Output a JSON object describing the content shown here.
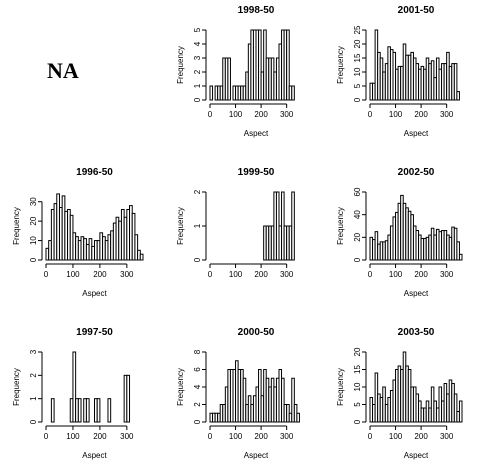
{
  "na_label": "NA",
  "chart_data": [
    {
      "type": "bar",
      "title": "1998-50",
      "xlabel": "Aspect",
      "ylabel": "Frequency",
      "bin_width": 10,
      "xlim": [
        0,
        360
      ],
      "xticks": [
        0,
        100,
        200,
        300
      ],
      "ylim": [
        0,
        5
      ],
      "yticks": [
        0,
        1,
        2,
        3,
        4,
        5
      ],
      "categories": [
        "0-10",
        "10-20",
        "20-30",
        "30-40",
        "40-50",
        "50-60",
        "60-70",
        "70-80",
        "80-90",
        "90-100",
        "100-110",
        "110-120",
        "120-130",
        "130-140",
        "140-150",
        "150-160",
        "160-170",
        "170-180",
        "180-190",
        "190-200",
        "200-210",
        "210-220",
        "220-230",
        "230-240",
        "240-250",
        "250-260",
        "260-270",
        "270-280",
        "280-290",
        "290-300",
        "300-310",
        "310-320",
        "320-330",
        "330-340",
        "340-350",
        "350-360"
      ],
      "values": [
        1,
        0,
        1,
        1,
        1,
        3,
        3,
        3,
        0,
        1,
        1,
        1,
        1,
        1,
        2,
        4,
        5,
        5,
        5,
        5,
        2,
        5,
        3,
        3,
        3,
        2,
        3,
        4,
        5,
        5,
        5,
        1,
        1,
        0,
        0,
        0
      ]
    },
    {
      "type": "bar",
      "title": "2001-50",
      "xlabel": "Aspect",
      "ylabel": "Frequency",
      "bin_width": 10,
      "xlim": [
        0,
        360
      ],
      "xticks": [
        0,
        100,
        200,
        300
      ],
      "ylim": [
        0,
        25
      ],
      "yticks": [
        0,
        5,
        10,
        15,
        20,
        25
      ],
      "categories": [
        "0-10",
        "10-20",
        "20-30",
        "30-40",
        "40-50",
        "50-60",
        "60-70",
        "70-80",
        "80-90",
        "90-100",
        "100-110",
        "110-120",
        "120-130",
        "130-140",
        "140-150",
        "150-160",
        "160-170",
        "170-180",
        "180-190",
        "190-200",
        "200-210",
        "210-220",
        "220-230",
        "230-240",
        "240-250",
        "250-260",
        "260-270",
        "270-280",
        "280-290",
        "290-300",
        "300-310",
        "310-320",
        "320-330",
        "330-340",
        "340-350",
        "350-360"
      ],
      "values": [
        6,
        6,
        25,
        17,
        15,
        10,
        13,
        19,
        18,
        17,
        11,
        12,
        12,
        20,
        16,
        16,
        17,
        15,
        13,
        11,
        12,
        11,
        15,
        13,
        14,
        8,
        15,
        11,
        13,
        13,
        17,
        12,
        13,
        13,
        3,
        0
      ]
    },
    {
      "type": "bar",
      "title": "1996-50",
      "xlabel": "Aspect",
      "ylabel": "Frequency",
      "bin_width": 10,
      "xlim": [
        0,
        360
      ],
      "xticks": [
        0,
        100,
        200,
        300
      ],
      "ylim": [
        0,
        35
      ],
      "yticks": [
        0,
        10,
        20,
        30
      ],
      "categories": [
        "0-10",
        "10-20",
        "20-30",
        "30-40",
        "40-50",
        "50-60",
        "60-70",
        "70-80",
        "80-90",
        "90-100",
        "100-110",
        "110-120",
        "120-130",
        "130-140",
        "140-150",
        "150-160",
        "160-170",
        "170-180",
        "180-190",
        "190-200",
        "200-210",
        "210-220",
        "220-230",
        "230-240",
        "240-250",
        "250-260",
        "260-270",
        "270-280",
        "280-290",
        "290-300",
        "300-310",
        "310-320",
        "320-330",
        "330-340",
        "340-350",
        "350-360"
      ],
      "values": [
        6,
        10,
        26,
        29,
        34,
        27,
        33,
        25,
        26,
        23,
        14,
        12,
        10,
        12,
        11,
        8,
        11,
        7,
        10,
        10,
        14,
        12,
        10,
        13,
        15,
        19,
        22,
        20,
        26,
        22,
        26,
        28,
        24,
        13,
        5,
        3
      ]
    },
    {
      "type": "bar",
      "title": "1999-50",
      "xlabel": "",
      "ylabel": "Frequency",
      "bin_width": 10,
      "xlim": [
        0,
        360
      ],
      "xticks": [
        0,
        100,
        200,
        300
      ],
      "ylim": [
        0,
        2
      ],
      "yticks": [
        0.0,
        1.0,
        2.0
      ],
      "categories": [
        "0-10",
        "10-20",
        "20-30",
        "30-40",
        "40-50",
        "50-60",
        "60-70",
        "70-80",
        "80-90",
        "90-100",
        "100-110",
        "110-120",
        "120-130",
        "130-140",
        "140-150",
        "150-160",
        "160-170",
        "170-180",
        "180-190",
        "190-200",
        "200-210",
        "210-220",
        "220-230",
        "230-240",
        "240-250",
        "250-260",
        "260-270",
        "270-280",
        "280-290",
        "290-300",
        "300-310",
        "310-320",
        "320-330",
        "330-340",
        "340-350",
        "350-360"
      ],
      "values": [
        0,
        0,
        0,
        0,
        0,
        0,
        0,
        0,
        0,
        0,
        0,
        0,
        0,
        0,
        0,
        0,
        0,
        0,
        0,
        0,
        0,
        1,
        1,
        1,
        1,
        2,
        2,
        1,
        2,
        1,
        1,
        1,
        2,
        0,
        0,
        0
      ]
    },
    {
      "type": "bar",
      "title": "2002-50",
      "xlabel": "Aspect",
      "ylabel": "Frequency",
      "bin_width": 10,
      "xlim": [
        0,
        360
      ],
      "xticks": [
        0,
        100,
        200,
        300
      ],
      "ylim": [
        0,
        60
      ],
      "yticks": [
        0,
        20,
        40,
        60
      ],
      "categories": [
        "0-10",
        "10-20",
        "20-30",
        "30-40",
        "40-50",
        "50-60",
        "60-70",
        "70-80",
        "80-90",
        "90-100",
        "100-110",
        "110-120",
        "120-130",
        "130-140",
        "140-150",
        "150-160",
        "160-170",
        "170-180",
        "180-190",
        "190-200",
        "200-210",
        "210-220",
        "220-230",
        "230-240",
        "240-250",
        "250-260",
        "260-270",
        "270-280",
        "280-290",
        "290-300",
        "300-310",
        "310-320",
        "320-330",
        "330-340",
        "340-350",
        "350-360"
      ],
      "values": [
        20,
        18,
        25,
        14,
        16,
        16,
        17,
        22,
        30,
        38,
        42,
        50,
        57,
        50,
        46,
        43,
        40,
        30,
        26,
        22,
        19,
        19,
        20,
        22,
        28,
        22,
        27,
        25,
        26,
        26,
        22,
        20,
        29,
        28,
        16,
        5
      ]
    },
    {
      "type": "bar",
      "title": "1997-50",
      "xlabel": "Aspect",
      "ylabel": "Frequency",
      "bin_width": 10,
      "xlim": [
        0,
        360
      ],
      "xticks": [
        0,
        100,
        200,
        300
      ],
      "ylim": [
        0,
        3
      ],
      "yticks": [
        0.0,
        1.0,
        2.0,
        3.0
      ],
      "categories": [
        "0-10",
        "10-20",
        "20-30",
        "30-40",
        "40-50",
        "50-60",
        "60-70",
        "70-80",
        "80-90",
        "90-100",
        "100-110",
        "110-120",
        "120-130",
        "130-140",
        "140-150",
        "150-160",
        "160-170",
        "170-180",
        "180-190",
        "190-200",
        "200-210",
        "210-220",
        "220-230",
        "230-240",
        "240-250",
        "250-260",
        "260-270",
        "270-280",
        "280-290",
        "290-300",
        "300-310",
        "310-320",
        "320-330",
        "330-340",
        "340-350",
        "350-360"
      ],
      "values": [
        0,
        0,
        1,
        0,
        0,
        0,
        0,
        0,
        0,
        1,
        3,
        1,
        1,
        0,
        1,
        1,
        0,
        0,
        1,
        1,
        0,
        0,
        0,
        1,
        0,
        0,
        0,
        0,
        0,
        2,
        2,
        0,
        0,
        0,
        0,
        0
      ]
    },
    {
      "type": "bar",
      "title": "2000-50",
      "xlabel": "Aspect",
      "ylabel": "Frequency",
      "bin_width": 10,
      "xlim": [
        0,
        360
      ],
      "xticks": [
        0,
        100,
        200,
        300
      ],
      "ylim": [
        0,
        8
      ],
      "yticks": [
        0,
        2,
        4,
        6,
        8
      ],
      "categories": [
        "0-10",
        "10-20",
        "20-30",
        "30-40",
        "40-50",
        "50-60",
        "60-70",
        "70-80",
        "80-90",
        "90-100",
        "100-110",
        "110-120",
        "120-130",
        "130-140",
        "140-150",
        "150-160",
        "160-170",
        "170-180",
        "180-190",
        "190-200",
        "200-210",
        "210-220",
        "220-230",
        "230-240",
        "240-250",
        "250-260",
        "260-270",
        "270-280",
        "280-290",
        "290-300",
        "300-310",
        "310-320",
        "320-330",
        "330-340",
        "340-350",
        "350-360"
      ],
      "values": [
        1,
        1,
        1,
        1,
        2,
        2,
        4,
        6,
        6,
        6,
        7,
        6,
        6,
        5,
        2,
        3,
        2,
        3,
        4,
        6,
        3,
        6,
        5,
        4,
        5,
        4,
        5,
        6,
        5,
        2,
        2,
        1,
        5,
        2,
        1,
        0
      ]
    },
    {
      "type": "bar",
      "title": "2003-50",
      "xlabel": "Aspect",
      "ylabel": "Frequency",
      "bin_width": 10,
      "xlim": [
        0,
        360
      ],
      "xticks": [
        0,
        100,
        200,
        300
      ],
      "ylim": [
        0,
        20
      ],
      "yticks": [
        0,
        5,
        10,
        15,
        20
      ],
      "categories": [
        "0-10",
        "10-20",
        "20-30",
        "30-40",
        "40-50",
        "50-60",
        "60-70",
        "70-80",
        "80-90",
        "90-100",
        "100-110",
        "110-120",
        "120-130",
        "130-140",
        "140-150",
        "150-160",
        "160-170",
        "170-180",
        "180-190",
        "190-200",
        "200-210",
        "210-220",
        "220-230",
        "230-240",
        "240-250",
        "250-260",
        "260-270",
        "270-280",
        "280-290",
        "290-300",
        "300-310",
        "310-320",
        "320-330",
        "330-340",
        "340-350",
        "350-360"
      ],
      "values": [
        7,
        5,
        14,
        8,
        7,
        10,
        5,
        7,
        9,
        12,
        15,
        16,
        15,
        20,
        16,
        15,
        10,
        10,
        8,
        6,
        4,
        4,
        6,
        4,
        10,
        6,
        4,
        10,
        6,
        11,
        8,
        12,
        11,
        8,
        3,
        6
      ]
    }
  ]
}
